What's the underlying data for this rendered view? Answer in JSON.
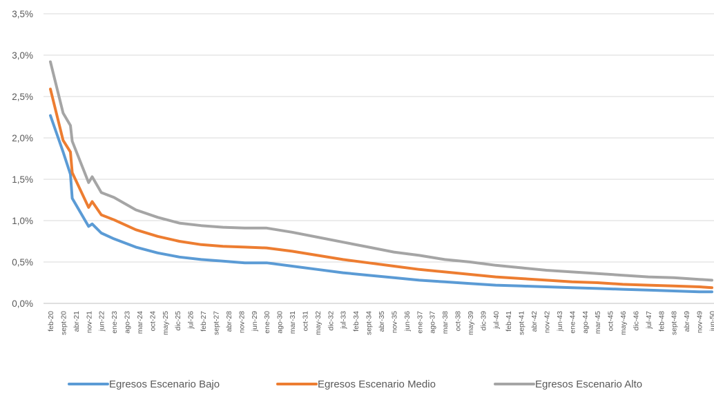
{
  "chart_data": {
    "type": "line",
    "title": "",
    "xlabel": "",
    "ylabel": "",
    "ylim": [
      0,
      0.035
    ],
    "y_tick_labels": [
      "0,0%",
      "0,5%",
      "1,0%",
      "1,5%",
      "2,0%",
      "2,5%",
      "3,0%",
      "3,5%"
    ],
    "x_tick_labels": [
      "feb-20",
      "sept-20",
      "abr-21",
      "nov-21",
      "jun-22",
      "ene-23",
      "ago-23",
      "mar-24",
      "oct-24",
      "may-25",
      "dic-25",
      "jul-26",
      "feb-27",
      "sept-27",
      "abr-28",
      "nov-28",
      "jun-29",
      "ene-30",
      "ago-30",
      "mar-31",
      "oct-31",
      "may-32",
      "dic-32",
      "jul-33",
      "feb-34",
      "sept-34",
      "abr-35",
      "nov-35",
      "jun-36",
      "ene-37",
      "ago-37",
      "mar-38",
      "oct-38",
      "may-39",
      "dic-39",
      "jul-40",
      "feb-41",
      "sept-41",
      "abr-42",
      "nov-42",
      "jun-43",
      "ene-44",
      "ago-44",
      "mar-45",
      "oct-45",
      "may-46",
      "dic-46",
      "jul-47",
      "feb-48",
      "sept-48",
      "abr-49",
      "nov-49",
      "jun-50"
    ],
    "grid": true,
    "legend_position": "bottom",
    "series": [
      {
        "name": "Egresos Escenario Bajo",
        "color": "#5B9BD5",
        "x": [
          "feb-20",
          "sept-20",
          "ene-21",
          "feb-21",
          "nov-21",
          "ene-22",
          "jun-22",
          "ene-23",
          "ene-24",
          "ene-25",
          "ene-26",
          "ene-27",
          "ene-28",
          "ene-29",
          "ene-30",
          "mar-31",
          "may-32",
          "jul-33",
          "sept-34",
          "nov-35",
          "ene-37",
          "mar-38",
          "may-39",
          "jul-40",
          "sept-41",
          "nov-42",
          "ene-44",
          "mar-45",
          "may-46",
          "jul-47",
          "sept-48",
          "nov-49",
          "jun-50"
        ],
        "values": [
          0.0227,
          0.0183,
          0.0156,
          0.0127,
          0.0093,
          0.0096,
          0.0085,
          0.0078,
          0.0068,
          0.0061,
          0.0056,
          0.0053,
          0.0051,
          0.0049,
          0.0049,
          0.0045,
          0.0041,
          0.0037,
          0.0034,
          0.0031,
          0.0028,
          0.0026,
          0.0024,
          0.0022,
          0.0021,
          0.002,
          0.0019,
          0.0018,
          0.0017,
          0.0016,
          0.0015,
          0.0014,
          0.0014
        ]
      },
      {
        "name": "Egresos Escenario Medio",
        "color": "#ED7D31",
        "x": [
          "feb-20",
          "sept-20",
          "ene-21",
          "feb-21",
          "nov-21",
          "ene-22",
          "jun-22",
          "ene-23",
          "ene-24",
          "ene-25",
          "ene-26",
          "ene-27",
          "ene-28",
          "ene-29",
          "ene-30",
          "mar-31",
          "may-32",
          "jul-33",
          "sept-34",
          "nov-35",
          "ene-37",
          "mar-38",
          "may-39",
          "jul-40",
          "sept-41",
          "nov-42",
          "ene-44",
          "mar-45",
          "may-46",
          "jul-47",
          "sept-48",
          "nov-49",
          "jun-50"
        ],
        "values": [
          0.0259,
          0.0197,
          0.0183,
          0.0158,
          0.0116,
          0.0123,
          0.0107,
          0.0101,
          0.0089,
          0.0081,
          0.0075,
          0.0071,
          0.0069,
          0.0068,
          0.0067,
          0.0063,
          0.0058,
          0.0053,
          0.0049,
          0.0045,
          0.0041,
          0.0038,
          0.0035,
          0.0032,
          0.003,
          0.0028,
          0.0026,
          0.0025,
          0.0023,
          0.0022,
          0.0021,
          0.002,
          0.0019
        ]
      },
      {
        "name": "Egresos Escenario Alto",
        "color": "#A5A5A5",
        "x": [
          "feb-20",
          "sept-20",
          "ene-21",
          "feb-21",
          "nov-21",
          "ene-22",
          "jun-22",
          "ene-23",
          "ene-24",
          "ene-25",
          "ene-26",
          "ene-27",
          "ene-28",
          "ene-29",
          "ene-30",
          "mar-31",
          "may-32",
          "jul-33",
          "sept-34",
          "nov-35",
          "ene-37",
          "mar-38",
          "may-39",
          "jul-40",
          "sept-41",
          "nov-42",
          "ene-44",
          "mar-45",
          "may-46",
          "jul-47",
          "sept-48",
          "nov-49",
          "jun-50"
        ],
        "values": [
          0.0292,
          0.023,
          0.0215,
          0.0196,
          0.0146,
          0.0153,
          0.0134,
          0.0128,
          0.0113,
          0.0104,
          0.0097,
          0.0094,
          0.0092,
          0.0091,
          0.0091,
          0.0086,
          0.008,
          0.0074,
          0.0068,
          0.0062,
          0.0058,
          0.0053,
          0.005,
          0.0046,
          0.0043,
          0.004,
          0.0038,
          0.0036,
          0.0034,
          0.0032,
          0.0031,
          0.0029,
          0.0028
        ]
      }
    ]
  }
}
